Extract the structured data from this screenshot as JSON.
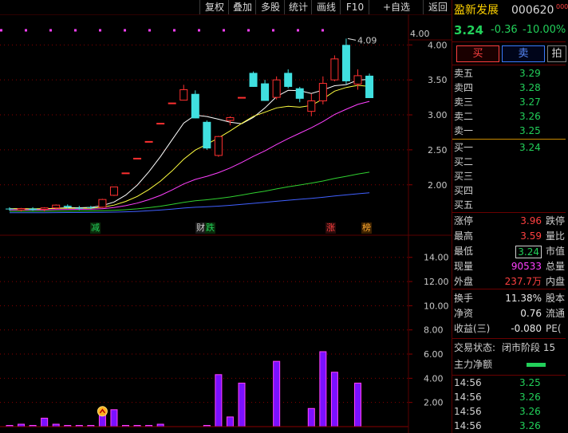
{
  "toolbar": {
    "buttons": [
      "复权",
      "叠加",
      "多股",
      "统计",
      "画线",
      "F10",
      "+自选",
      "返回"
    ]
  },
  "chart_data": [
    {
      "type": "candlestick",
      "title": "",
      "price_label_top": "4.00",
      "yticks": [
        4.0,
        3.5,
        3.0,
        2.5,
        2.0
      ],
      "ytick_labels": [
        "4.00",
        "3.50",
        "3.00",
        "2.50",
        "2.00"
      ],
      "ylim": [
        1.45,
        4.3
      ],
      "high_annotation": "4.09",
      "candles": [
        {
          "o": 1.66,
          "h": 1.68,
          "l": 1.63,
          "c": 1.65
        },
        {
          "o": 1.64,
          "h": 1.67,
          "l": 1.62,
          "c": 1.66
        },
        {
          "o": 1.66,
          "h": 1.68,
          "l": 1.63,
          "c": 1.64
        },
        {
          "o": 1.65,
          "h": 1.68,
          "l": 1.62,
          "c": 1.67
        },
        {
          "o": 1.67,
          "h": 1.72,
          "l": 1.65,
          "c": 1.71
        },
        {
          "o": 1.7,
          "h": 1.72,
          "l": 1.66,
          "c": 1.68
        },
        {
          "o": 1.67,
          "h": 1.7,
          "l": 1.64,
          "c": 1.66
        },
        {
          "o": 1.68,
          "h": 1.7,
          "l": 1.65,
          "c": 1.67
        },
        {
          "o": 1.68,
          "h": 1.8,
          "l": 1.67,
          "c": 1.79
        },
        {
          "o": 1.85,
          "h": 1.97,
          "l": 1.84,
          "c": 1.97
        },
        {
          "o": 2.17,
          "h": 2.17,
          "l": 2.17,
          "c": 2.17
        },
        {
          "o": 2.38,
          "h": 2.38,
          "l": 2.38,
          "c": 2.38
        },
        {
          "o": 2.62,
          "h": 2.62,
          "l": 2.62,
          "c": 2.62
        },
        {
          "o": 2.88,
          "h": 2.88,
          "l": 2.88,
          "c": 2.88
        },
        {
          "o": 3.17,
          "h": 3.17,
          "l": 3.17,
          "c": 3.17
        },
        {
          "o": 3.21,
          "h": 3.43,
          "l": 3.21,
          "c": 3.36
        },
        {
          "o": 3.3,
          "h": 3.35,
          "l": 2.95,
          "c": 2.95
        },
        {
          "o": 2.9,
          "h": 2.92,
          "l": 2.5,
          "c": 2.52
        },
        {
          "o": 2.42,
          "h": 2.7,
          "l": 2.4,
          "c": 2.69
        },
        {
          "o": 2.92,
          "h": 2.98,
          "l": 2.85,
          "c": 2.96
        },
        {
          "o": 3.25,
          "h": 3.25,
          "l": 3.25,
          "c": 3.25
        },
        {
          "o": 3.6,
          "h": 3.62,
          "l": 3.4,
          "c": 3.4
        },
        {
          "o": 3.45,
          "h": 3.5,
          "l": 3.2,
          "c": 3.2
        },
        {
          "o": 3.25,
          "h": 3.55,
          "l": 3.22,
          "c": 3.5
        },
        {
          "o": 3.6,
          "h": 3.65,
          "l": 3.38,
          "c": 3.4
        },
        {
          "o": 3.38,
          "h": 3.4,
          "l": 3.18,
          "c": 3.23
        },
        {
          "o": 3.05,
          "h": 3.3,
          "l": 2.98,
          "c": 3.2
        },
        {
          "o": 3.2,
          "h": 3.55,
          "l": 3.15,
          "c": 3.45
        },
        {
          "o": 3.5,
          "h": 3.85,
          "l": 3.48,
          "c": 3.8
        },
        {
          "o": 4.0,
          "h": 4.09,
          "l": 3.44,
          "c": 3.48
        },
        {
          "o": 3.44,
          "h": 3.65,
          "l": 3.36,
          "c": 3.56
        },
        {
          "o": 3.56,
          "h": 3.59,
          "l": 3.24,
          "c": 3.24
        }
      ]
    },
    {
      "type": "bar",
      "yticks": [
        2.0,
        4.0,
        6.0,
        8.0,
        10.0,
        12.0,
        14.0
      ],
      "ytick_labels": [
        "2.00",
        "4.00",
        "6.00",
        "8.00",
        "10.00",
        "12.00",
        "14.00"
      ],
      "ylim": [
        0,
        15.5
      ],
      "values": [
        0.1,
        0.2,
        0.1,
        0.7,
        0.2,
        0.1,
        0.1,
        0.1,
        1.2,
        1.4,
        0.1,
        0.1,
        0.1,
        0.2,
        0,
        0,
        0,
        0.1,
        4.3,
        0.8,
        3.6,
        0,
        0,
        5.4,
        0,
        0,
        1.5,
        6.2,
        4.5,
        0,
        3.6,
        0
      ]
    }
  ],
  "markers": [
    "减",
    "财",
    "跌",
    "涨",
    "榜"
  ],
  "quote": {
    "name": "盈新发展",
    "code": "000620",
    "code_suffix": "000",
    "price": "3.24",
    "change": "-0.36",
    "change_pct": "-10.00%",
    "buy_label": "买",
    "sell_label": "卖",
    "third_label": "拍"
  },
  "sell_book": [
    {
      "label": "卖五",
      "price": "3.29"
    },
    {
      "label": "卖四",
      "price": "3.28"
    },
    {
      "label": "卖三",
      "price": "3.27"
    },
    {
      "label": "卖二",
      "price": "3.26"
    },
    {
      "label": "卖一",
      "price": "3.25"
    }
  ],
  "buy_book": [
    {
      "label": "买一",
      "price": "3.24"
    },
    {
      "label": "买二",
      "price": ""
    },
    {
      "label": "买三",
      "price": ""
    },
    {
      "label": "买四",
      "price": ""
    },
    {
      "label": "买五",
      "price": ""
    }
  ],
  "stats": [
    {
      "label": "涨停",
      "value": "3.96",
      "color": "#ff4040",
      "label2": "跌停"
    },
    {
      "label": "最高",
      "value": "3.59",
      "color": "#ff4040",
      "label2": "量比"
    },
    {
      "label": "最低",
      "value": "3.24",
      "color": "#22d05a",
      "label2": "市值"
    },
    {
      "label": "现量",
      "value": "90533",
      "color": "#ff40ff",
      "label2": "总量"
    },
    {
      "label": "外盘",
      "value": "237.7万",
      "color": "#ff4040",
      "label2": "内盘"
    }
  ],
  "stats2": [
    {
      "label": "换手",
      "value": "11.38%",
      "label2": "股本"
    },
    {
      "label": "净资",
      "value": "0.76",
      "label2": "流通"
    },
    {
      "label": "收益(三)",
      "value": "-0.080",
      "label2": "PE("
    }
  ],
  "status": {
    "label": "交易状态:",
    "value": "闭市阶段 15"
  },
  "netflow": {
    "label": "主力净额",
    "color": "#22d05a"
  },
  "ticks": [
    {
      "time": "14:56",
      "price": "3.25"
    },
    {
      "time": "14:56",
      "price": "3.26"
    },
    {
      "time": "14:56",
      "price": "3.26"
    },
    {
      "time": "14:56",
      "price": "3.26"
    }
  ]
}
